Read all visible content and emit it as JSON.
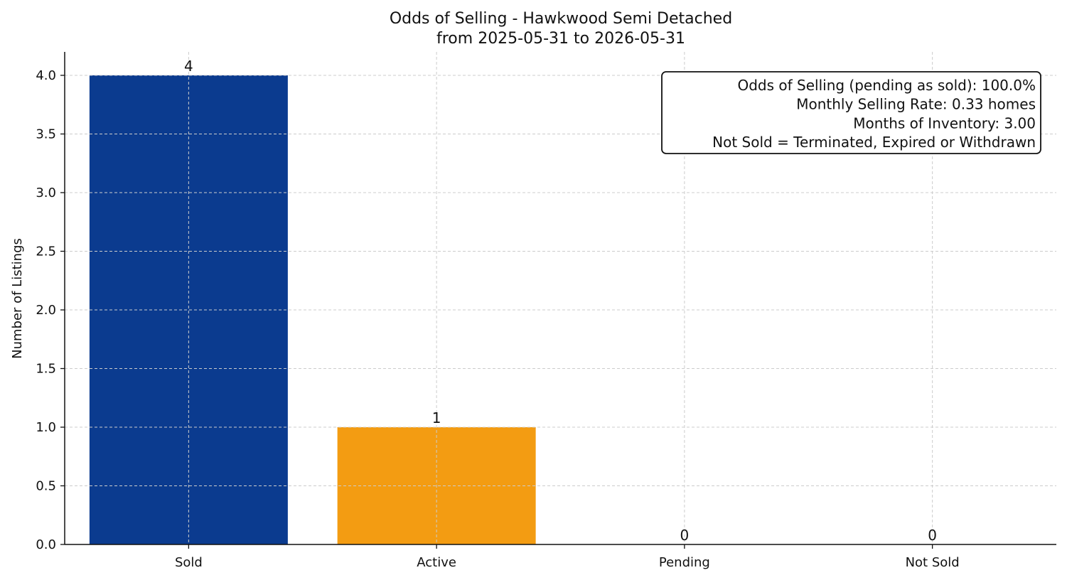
{
  "chart_data": {
    "type": "bar",
    "title": "Odds of Selling - Hawkwood Semi Detached",
    "subtitle": "from 2025-05-31 to 2026-05-31",
    "ylabel": "Number of Listings",
    "xlabel": "",
    "categories": [
      "Sold",
      "Active",
      "Pending",
      "Not Sold"
    ],
    "values": [
      4,
      1,
      0,
      0
    ],
    "value_labels": [
      "4",
      "1",
      "0",
      "0"
    ],
    "colors": [
      "#0b3b8f",
      "#f39c12",
      "#2ca02c",
      "#d62728"
    ],
    "ylim": [
      0,
      4.2
    ],
    "yticks": [
      0.0,
      0.5,
      1.0,
      1.5,
      2.0,
      2.5,
      3.0,
      3.5,
      4.0
    ],
    "ytick_labels": [
      "0.0",
      "0.5",
      "1.0",
      "1.5",
      "2.0",
      "2.5",
      "3.0",
      "3.5",
      "4.0"
    ],
    "grid": true,
    "info_box": {
      "placement": "top-right",
      "lines": [
        "Odds of Selling (pending as sold): 100.0%",
        "Monthly Selling Rate: 0.33 homes",
        "Months of Inventory: 3.00",
        "Not Sold = Terminated, Expired or Withdrawn"
      ]
    }
  }
}
